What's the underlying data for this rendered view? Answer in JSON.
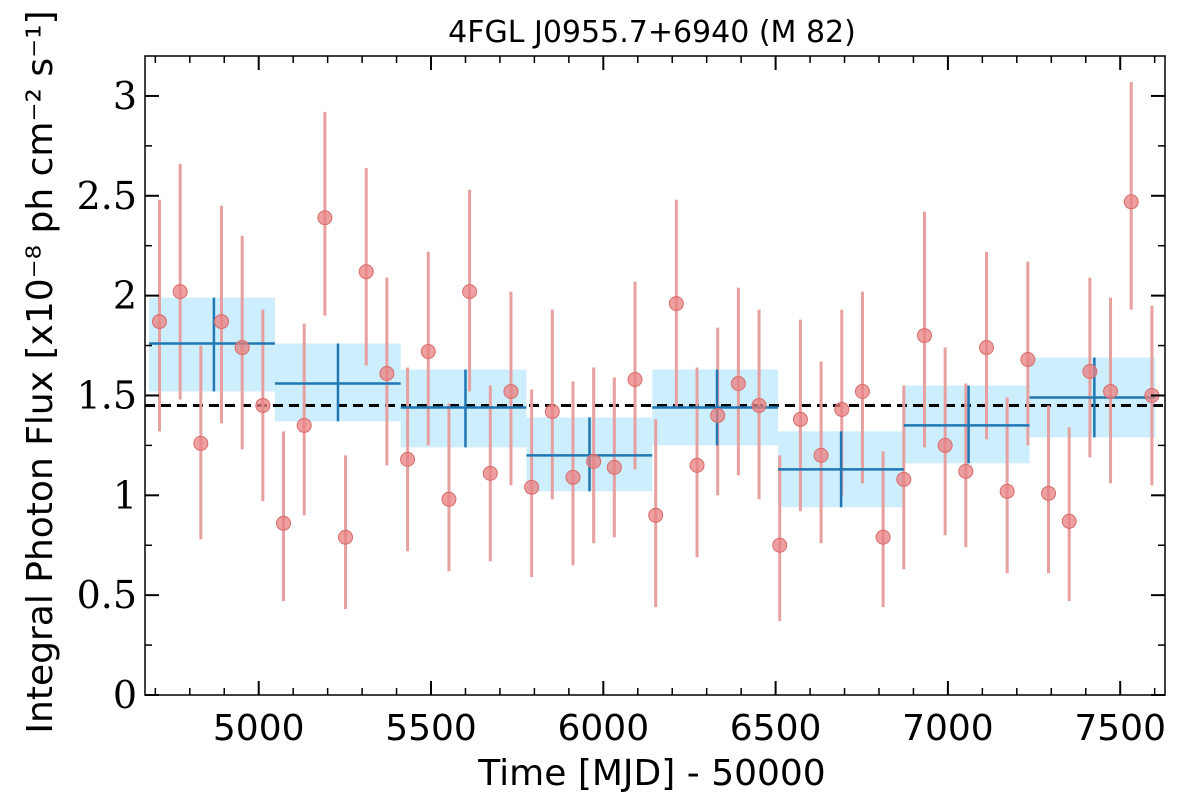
{
  "chart_data": {
    "type": "scatter",
    "title": "4FGL J0955.7+6940 (M 82)",
    "xlabel": "Time [MJD] - 50000",
    "ylabel": "Integral Photon Flux [x10⁻⁸ ph cm⁻² s⁻¹]",
    "xlim": [
      4670,
      7630
    ],
    "ylim": [
      0,
      3.2
    ],
    "xticks": [
      5000,
      5500,
      6000,
      6500,
      7000,
      7500
    ],
    "xtick_labels": [
      "5000",
      "5500",
      "6000",
      "6500",
      "7000",
      "7500"
    ],
    "yticks": [
      0,
      0.5,
      1,
      1.5,
      2,
      2.5,
      3
    ],
    "ytick_labels": [
      "0",
      "0.5",
      "1",
      "1.5",
      "2",
      "2.5",
      "3"
    ],
    "grid": false,
    "mean_flux": 1.45,
    "colors": {
      "points": "#e88080",
      "errorbars": "#e6a0a0",
      "bin_fill": "#cdeefd",
      "bin_line": "#1f77b4",
      "mean_line": "#000000"
    },
    "series": [
      {
        "kind": "monthly",
        "x": [
          4712,
          4772,
          4832,
          4892,
          4952,
          5012,
          5072,
          5132,
          5192,
          5252,
          5312,
          5372,
          5432,
          5492,
          5552,
          5612,
          5672,
          5732,
          5792,
          5852,
          5912,
          5972,
          6032,
          6092,
          6152,
          6212,
          6272,
          6332,
          6392,
          6452,
          6512,
          6572,
          6632,
          6692,
          6752,
          6812,
          6872,
          6932,
          6992,
          7052,
          7112,
          7172,
          7232,
          7292,
          7352,
          7412,
          7472,
          7532,
          7592
        ],
        "y": [
          1.87,
          2.02,
          1.26,
          1.87,
          1.74,
          1.45,
          0.86,
          1.35,
          2.39,
          0.79,
          2.12,
          1.61,
          1.18,
          1.72,
          0.98,
          2.02,
          1.11,
          1.52,
          1.04,
          1.42,
          1.09,
          1.17,
          1.14,
          1.58,
          0.9,
          1.96,
          1.15,
          1.4,
          1.56,
          1.45,
          0.75,
          1.38,
          1.2,
          1.43,
          1.52,
          0.79,
          1.08,
          1.8,
          1.25,
          1.12,
          1.74,
          1.02,
          1.68,
          1.01,
          0.87,
          1.62,
          1.52,
          2.47,
          1.5
        ],
        "y_lo": [
          1.32,
          1.48,
          0.78,
          1.36,
          1.23,
          0.97,
          0.47,
          0.9,
          1.9,
          0.43,
          1.65,
          1.15,
          0.72,
          1.25,
          0.62,
          1.52,
          0.67,
          1.05,
          0.59,
          0.98,
          0.65,
          0.76,
          0.79,
          1.13,
          0.44,
          1.44,
          0.69,
          1.0,
          1.1,
          0.98,
          0.37,
          0.92,
          0.76,
          1.0,
          1.06,
          0.44,
          0.63,
          1.24,
          0.8,
          0.74,
          1.28,
          0.61,
          1.25,
          0.61,
          0.47,
          1.19,
          1.06,
          1.93,
          1.05
        ],
        "y_hi": [
          2.48,
          2.66,
          1.75,
          2.45,
          2.3,
          1.93,
          1.32,
          1.86,
          2.92,
          1.2,
          2.64,
          2.09,
          1.64,
          2.22,
          1.46,
          2.53,
          1.55,
          2.02,
          1.53,
          1.93,
          1.57,
          1.64,
          1.59,
          2.07,
          1.38,
          2.48,
          1.64,
          1.84,
          2.04,
          1.93,
          1.2,
          1.88,
          1.67,
          1.93,
          2.02,
          1.22,
          1.55,
          2.42,
          1.74,
          1.56,
          2.22,
          1.49,
          2.17,
          1.45,
          1.34,
          2.09,
          1.99,
          3.07,
          1.95
        ]
      },
      {
        "kind": "yearly",
        "x_lo": [
          4682,
          5047,
          5412,
          5777,
          6142,
          6507,
          6872,
          7237
        ],
        "x_hi": [
          5047,
          5412,
          5777,
          6142,
          6507,
          6872,
          7237,
          7602
        ],
        "x_center": [
          4870,
          5230,
          5600,
          5960,
          6330,
          6690,
          7060,
          7425
        ],
        "y": [
          1.76,
          1.56,
          1.44,
          1.2,
          1.44,
          1.13,
          1.35,
          1.49
        ],
        "y_lo": [
          1.52,
          1.37,
          1.24,
          1.02,
          1.25,
          0.94,
          1.16,
          1.29
        ],
        "y_hi": [
          1.99,
          1.76,
          1.63,
          1.39,
          1.63,
          1.32,
          1.55,
          1.69
        ]
      }
    ]
  }
}
